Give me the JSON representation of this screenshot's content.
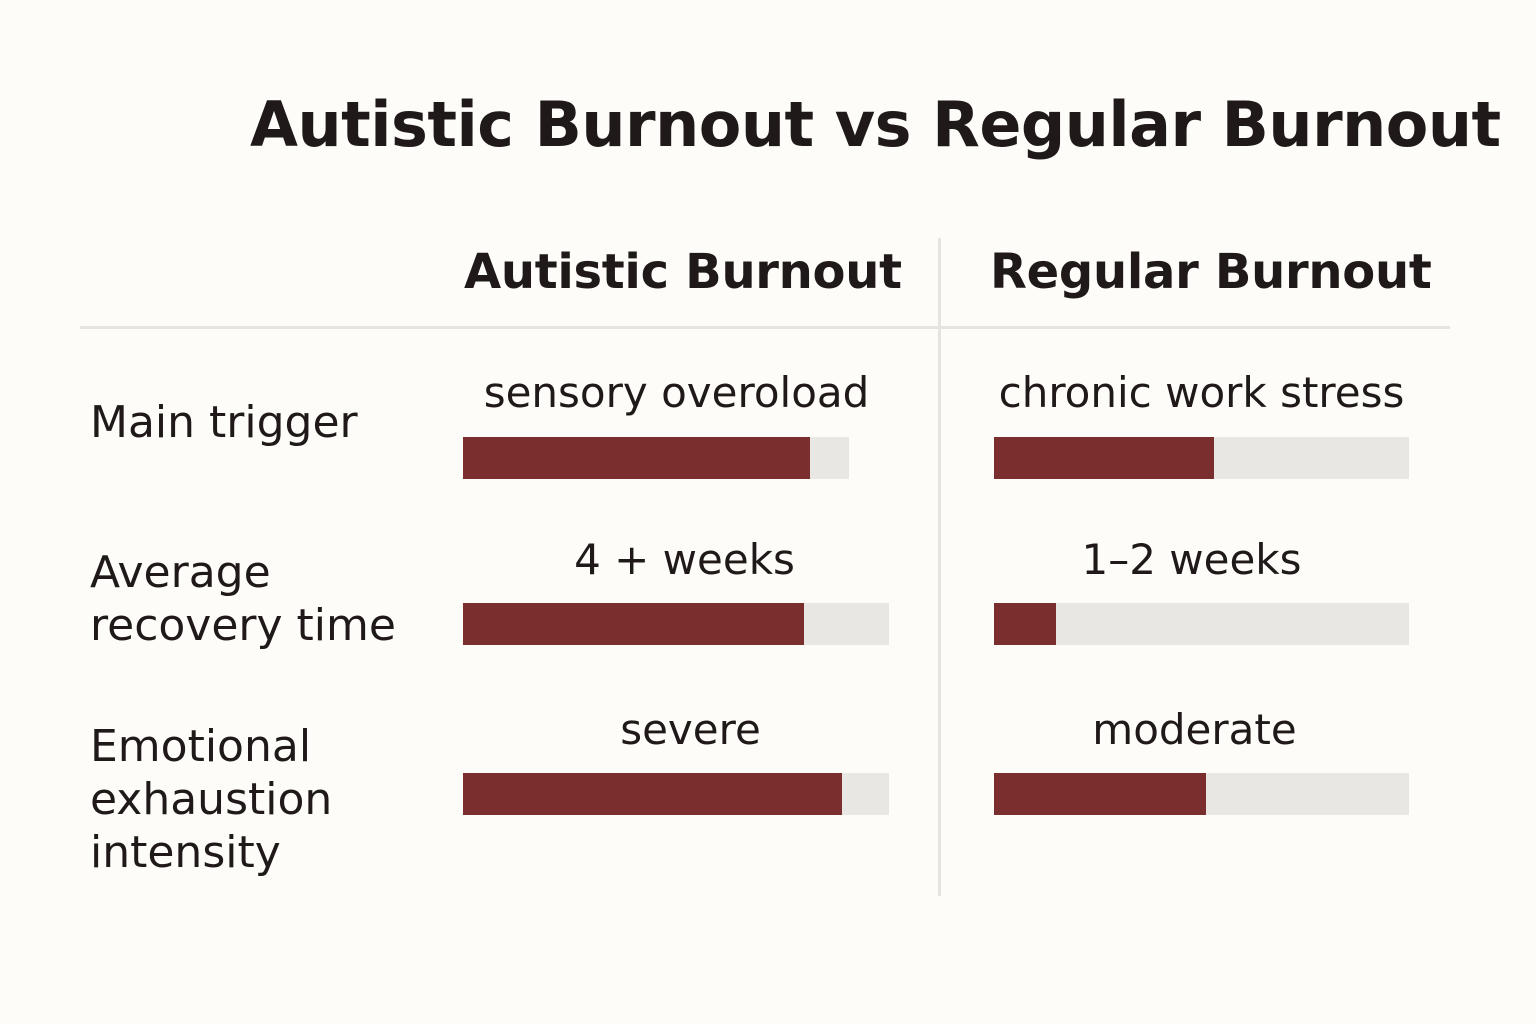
{
  "title": "Autistic Burnout vs Regular Burnout",
  "columns": [
    "Autistic Burnout",
    "Regular Burnout"
  ],
  "rows": [
    {
      "label": "Main trigger",
      "cells": [
        {
          "text": "sensory overoload",
          "level": 0.9
        },
        {
          "text": "chronic work stress",
          "level": 0.53
        }
      ]
    },
    {
      "label": "Average\nrecovery time",
      "cells": [
        {
          "text": "4 + weeks",
          "level": 0.8
        },
        {
          "text": "1–2 weeks",
          "level": 0.15
        }
      ]
    },
    {
      "label": "Emotional\nexhaustion\nintensity",
      "cells": [
        {
          "text": "severe",
          "level": 0.89
        },
        {
          "text": "moderate",
          "level": 0.51
        }
      ]
    }
  ],
  "colors": {
    "bar_fill": "#7a2f2e",
    "bar_track": "#e8e7e3",
    "background": "#fdfcf8",
    "text": "#1f1a19",
    "divider": "#e6e4df"
  },
  "chart_data": {
    "type": "bar",
    "title": "Autistic Burnout vs Regular Burnout",
    "categories": [
      "Main trigger",
      "Average recovery time",
      "Emotional exhaustion intensity"
    ],
    "series": [
      {
        "name": "Autistic Burnout",
        "values": [
          0.9,
          0.8,
          0.89
        ],
        "labels": [
          "sensory overoload",
          "4 + weeks",
          "severe"
        ]
      },
      {
        "name": "Regular Burnout",
        "values": [
          0.53,
          0.15,
          0.51
        ],
        "labels": [
          "chronic work stress",
          "1–2 weeks",
          "moderate"
        ]
      }
    ],
    "ylim": [
      0,
      1
    ],
    "grid": false
  }
}
